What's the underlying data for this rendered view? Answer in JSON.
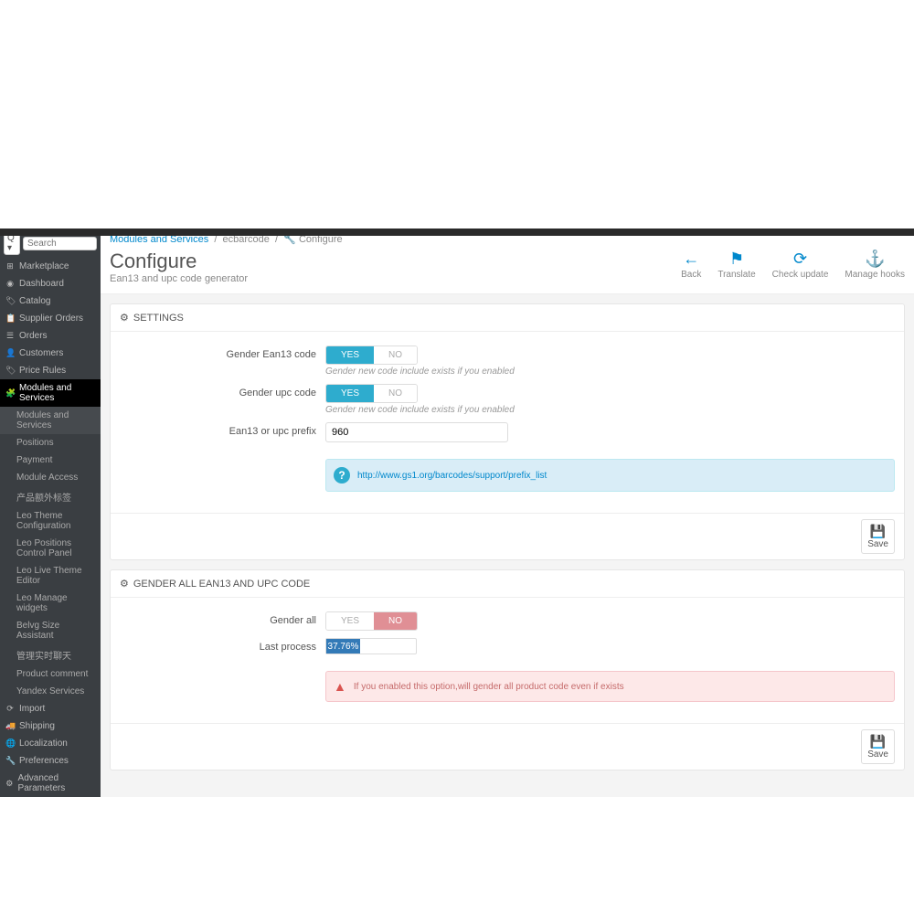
{
  "search": {
    "q": "Q",
    "placeholder": "Search"
  },
  "menu": [
    {
      "icon": "⊞",
      "label": "Marketplace"
    },
    {
      "icon": "◉",
      "label": "Dashboard"
    },
    {
      "icon": "🏷",
      "label": "Catalog"
    },
    {
      "icon": "📋",
      "label": "Supplier Orders"
    },
    {
      "icon": "☰",
      "label": "Orders"
    },
    {
      "icon": "👤",
      "label": "Customers"
    },
    {
      "icon": "🏷",
      "label": "Price Rules"
    },
    {
      "icon": "🧩",
      "label": "Modules and Services",
      "active": true
    }
  ],
  "submenu": [
    {
      "label": "Modules and Services",
      "hl": true
    },
    {
      "label": "Positions"
    },
    {
      "label": "Payment"
    },
    {
      "label": "Module Access"
    },
    {
      "label": "产品额外标签"
    },
    {
      "label": "Leo Theme Configuration"
    },
    {
      "label": "Leo Positions Control Panel"
    },
    {
      "label": "Leo Live Theme Editor"
    },
    {
      "label": "Leo Manage widgets"
    },
    {
      "label": "Belvg Size Assistant"
    },
    {
      "label": "管理实时聊天"
    },
    {
      "label": "Product comment"
    },
    {
      "label": "Yandex Services"
    }
  ],
  "menu2": [
    {
      "icon": "⟳",
      "label": "Import"
    },
    {
      "icon": "🚚",
      "label": "Shipping"
    },
    {
      "icon": "🌐",
      "label": "Localization"
    },
    {
      "icon": "🔧",
      "label": "Preferences"
    },
    {
      "icon": "⚙",
      "label": "Advanced Parameters"
    }
  ],
  "breadcrumb": {
    "parent": "Modules and Services",
    "mod": "ecbarcode",
    "current": "Configure"
  },
  "page": {
    "title": "Configure",
    "subtitle": "Ean13 and upc code generator"
  },
  "toolbar": [
    {
      "icon": "←",
      "label": "Back",
      "color": "#0088cc"
    },
    {
      "icon": "⚑",
      "label": "Translate",
      "color": "#0088cc"
    },
    {
      "icon": "⟳",
      "label": "Check update",
      "color": "#0088cc"
    },
    {
      "icon": "⚓",
      "label": "Manage hooks",
      "color": "#0088cc"
    }
  ],
  "panel1": {
    "title": "SETTINGS",
    "ean13_label": "Gender Ean13 code",
    "ean13_yes": "YES",
    "ean13_no": "NO",
    "ean13_help": "Gender new code include exists if you enabled",
    "upc_label": "Gender upc code",
    "upc_yes": "YES",
    "upc_no": "NO",
    "upc_help": "Gender new code include exists if you enabled",
    "prefix_label": "Ean13 or upc prefix",
    "prefix_value": "960",
    "info_link": "http://www.gs1.org/barcodes/support/prefix_list",
    "save": "Save"
  },
  "panel2": {
    "title": "GENDER ALL EAN13 AND UPC CODE",
    "all_label": "Gender all",
    "all_yes": "YES",
    "all_no": "NO",
    "process_label": "Last process",
    "process_pct": "37.76%",
    "process_width": "37.76%",
    "warn": "If you enabled this option,will gender all product code even if exists",
    "save": "Save"
  }
}
